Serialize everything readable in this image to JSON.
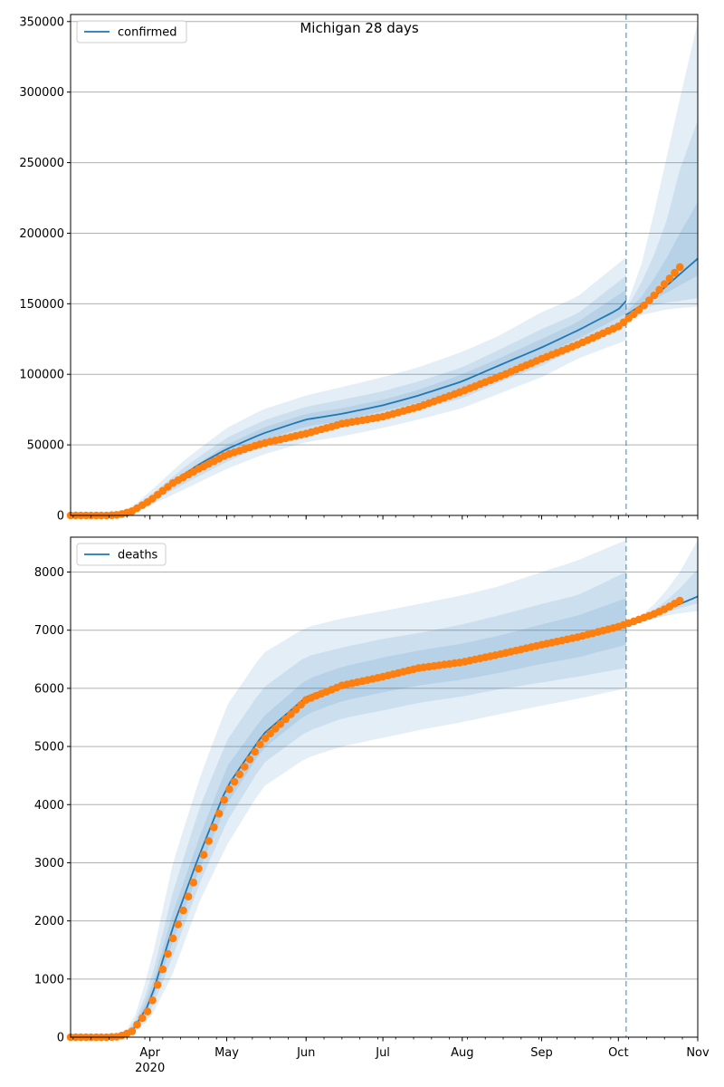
{
  "figure_title": "Michigan 28 days",
  "colors": {
    "line": "#1f77b4",
    "observed": "#ff7f0e",
    "band": "#1f77b4",
    "grid": "#b0b0b0"
  },
  "chart_data": [
    {
      "type": "line",
      "name": "confirmed",
      "legend": "confirmed",
      "legend_position": "top-left",
      "grid": "horizontal",
      "xlim": [
        "2020-03-01",
        "2020-11-01"
      ],
      "ylim": [
        0,
        355000
      ],
      "yticks": [
        0,
        50000,
        100000,
        150000,
        200000,
        250000,
        300000,
        350000
      ],
      "ytick_labels": [
        "0",
        "50000",
        "100000",
        "150000",
        "200000",
        "250000",
        "300000",
        "350000"
      ],
      "forecast_start": "2020-10-04",
      "model": {
        "x": [
          "2020-03-01",
          "2020-03-15",
          "2020-03-20",
          "2020-03-25",
          "2020-04-01",
          "2020-04-10",
          "2020-04-20",
          "2020-05-01",
          "2020-05-15",
          "2020-06-01",
          "2020-06-15",
          "2020-07-01",
          "2020-07-15",
          "2020-08-01",
          "2020-08-15",
          "2020-09-01",
          "2020-09-15",
          "2020-10-01",
          "2020-10-04"
        ],
        "y": [
          0,
          0,
          1000,
          4000,
          11000,
          24000,
          36000,
          47000,
          58000,
          68000,
          72000,
          78000,
          85000,
          95000,
          106000,
          119000,
          131000,
          146000,
          152000
        ]
      },
      "forecast": {
        "x": [
          "2020-10-04",
          "2020-10-10",
          "2020-10-15",
          "2020-10-20",
          "2020-10-25",
          "2020-11-01"
        ],
        "y": [
          142000,
          149000,
          155000,
          163000,
          171000,
          182000
        ]
      },
      "bands": [
        {
          "x": [
            "2020-03-01",
            "2020-03-15",
            "2020-03-25",
            "2020-04-01",
            "2020-04-15",
            "2020-05-01",
            "2020-05-15",
            "2020-06-01",
            "2020-06-15",
            "2020-07-01",
            "2020-07-15",
            "2020-08-01",
            "2020-08-15",
            "2020-09-01",
            "2020-09-15",
            "2020-10-04"
          ],
          "low": [
            0,
            0,
            2000,
            7000,
            19000,
            33000,
            43000,
            52000,
            56000,
            62000,
            68000,
            76000,
            86000,
            98000,
            111000,
            124000
          ],
          "high": [
            0,
            0,
            6000,
            17000,
            40000,
            62000,
            75000,
            85000,
            91000,
            98000,
            105000,
            116000,
            127000,
            144000,
            155000,
            183000
          ]
        },
        {
          "x": [
            "2020-03-01",
            "2020-03-15",
            "2020-03-25",
            "2020-04-01",
            "2020-04-15",
            "2020-05-01",
            "2020-05-15",
            "2020-06-01",
            "2020-06-15",
            "2020-07-01",
            "2020-07-15",
            "2020-08-01",
            "2020-08-15",
            "2020-09-01",
            "2020-09-15",
            "2020-10-04"
          ],
          "low": [
            0,
            0,
            3000,
            9000,
            23000,
            38000,
            49000,
            58000,
            63000,
            69000,
            75000,
            83000,
            94000,
            106000,
            119000,
            134000
          ],
          "high": [
            0,
            0,
            5000,
            14000,
            35000,
            55000,
            67000,
            77000,
            82000,
            88000,
            95000,
            105000,
            117000,
            132000,
            143000,
            170000
          ]
        },
        {
          "x": [
            "2020-03-01",
            "2020-03-15",
            "2020-03-25",
            "2020-04-01",
            "2020-04-15",
            "2020-05-01",
            "2020-05-15",
            "2020-06-01",
            "2020-06-15",
            "2020-07-01",
            "2020-07-15",
            "2020-08-01",
            "2020-08-15",
            "2020-09-01",
            "2020-09-15",
            "2020-10-04"
          ],
          "low": [
            0,
            0,
            3500,
            10500,
            26000,
            42000,
            53000,
            63000,
            67000,
            74000,
            80000,
            89000,
            100000,
            113000,
            125000,
            143000
          ],
          "high": [
            0,
            0,
            4500,
            12500,
            31000,
            50000,
            62000,
            72000,
            76000,
            82000,
            89000,
            100000,
            111000,
            125000,
            137000,
            160000
          ]
        },
        {
          "x": [
            "2020-10-04",
            "2020-10-10",
            "2020-10-15",
            "2020-10-20",
            "2020-10-25",
            "2020-11-01"
          ],
          "low": [
            138000,
            142000,
            144000,
            146000,
            147000,
            148000
          ],
          "high": [
            148000,
            178000,
            215000,
            255000,
            295000,
            350000
          ]
        },
        {
          "x": [
            "2020-10-04",
            "2020-10-10",
            "2020-10-15",
            "2020-10-20",
            "2020-10-25",
            "2020-11-01"
          ],
          "low": [
            140000,
            146000,
            149000,
            151000,
            152000,
            154000
          ],
          "high": [
            146000,
            165000,
            185000,
            210000,
            245000,
            280000
          ]
        },
        {
          "x": [
            "2020-10-04",
            "2020-10-10",
            "2020-10-15",
            "2020-10-20",
            "2020-10-25",
            "2020-11-01"
          ],
          "low": [
            141000,
            148000,
            153000,
            158000,
            163000,
            170000
          ],
          "high": [
            144000,
            155000,
            168000,
            183000,
            200000,
            222000
          ]
        }
      ],
      "observed": {
        "x": [
          "2020-03-01",
          "2020-03-10",
          "2020-03-15",
          "2020-03-20",
          "2020-03-25",
          "2020-04-01",
          "2020-04-10",
          "2020-04-20",
          "2020-05-01",
          "2020-05-15",
          "2020-06-01",
          "2020-06-15",
          "2020-07-01",
          "2020-07-15",
          "2020-08-01",
          "2020-08-15",
          "2020-09-01",
          "2020-09-15",
          "2020-10-01",
          "2020-10-10",
          "2020-10-15",
          "2020-10-20",
          "2020-10-25"
        ],
        "y": [
          0,
          0,
          0,
          500,
          3000,
          10500,
          23000,
          33000,
          43000,
          51000,
          58000,
          65000,
          70000,
          77000,
          88000,
          98000,
          111000,
          121000,
          134000,
          147000,
          156000,
          166000,
          176000
        ]
      }
    },
    {
      "type": "line",
      "name": "deaths",
      "legend": "deaths",
      "legend_position": "top-left",
      "grid": "horizontal",
      "xlim": [
        "2020-03-01",
        "2020-11-01"
      ],
      "ylim": [
        0,
        8600
      ],
      "yticks": [
        0,
        1000,
        2000,
        3000,
        4000,
        5000,
        6000,
        7000,
        8000
      ],
      "ytick_labels": [
        "0",
        "1000",
        "2000",
        "3000",
        "4000",
        "5000",
        "6000",
        "7000",
        "8000"
      ],
      "forecast_start": "2020-10-04",
      "model": {
        "x": [
          "2020-03-01",
          "2020-03-20",
          "2020-03-25",
          "2020-04-01",
          "2020-04-10",
          "2020-04-20",
          "2020-05-01",
          "2020-05-15",
          "2020-06-01",
          "2020-06-15",
          "2020-07-01",
          "2020-07-15",
          "2020-08-01",
          "2020-08-15",
          "2020-09-01",
          "2020-09-15",
          "2020-10-01",
          "2020-10-04"
        ],
        "y": [
          0,
          0,
          100,
          600,
          1900,
          3100,
          4300,
          5200,
          5850,
          6080,
          6230,
          6350,
          6450,
          6570,
          6750,
          6880,
          7050,
          7090
        ]
      },
      "forecast": {
        "x": [
          "2020-10-04",
          "2020-10-10",
          "2020-10-15",
          "2020-10-20",
          "2020-10-25",
          "2020-11-01"
        ],
        "y": [
          7090,
          7200,
          7280,
          7360,
          7450,
          7580
        ]
      },
      "bands": [
        {
          "x": [
            "2020-03-01",
            "2020-03-20",
            "2020-03-25",
            "2020-04-01",
            "2020-04-10",
            "2020-04-20",
            "2020-05-01",
            "2020-05-15",
            "2020-06-01",
            "2020-06-15",
            "2020-07-01",
            "2020-07-15",
            "2020-08-01",
            "2020-08-15",
            "2020-09-01",
            "2020-09-15",
            "2020-10-04"
          ],
          "low": [
            0,
            0,
            50,
            300,
            1100,
            2300,
            3300,
            4300,
            4800,
            5000,
            5150,
            5280,
            5420,
            5550,
            5700,
            5820,
            6000
          ],
          "high": [
            0,
            0,
            200,
            1200,
            3000,
            4400,
            5700,
            6600,
            7050,
            7200,
            7330,
            7450,
            7600,
            7750,
            8000,
            8200,
            8550
          ]
        },
        {
          "x": [
            "2020-03-01",
            "2020-03-20",
            "2020-03-25",
            "2020-04-01",
            "2020-04-10",
            "2020-04-20",
            "2020-05-01",
            "2020-05-15",
            "2020-06-01",
            "2020-06-15",
            "2020-07-01",
            "2020-07-15",
            "2020-08-01",
            "2020-08-15",
            "2020-09-01",
            "2020-09-15",
            "2020-10-04"
          ],
          "low": [
            0,
            0,
            70,
            400,
            1400,
            2600,
            3700,
            4700,
            5250,
            5480,
            5620,
            5750,
            5860,
            5980,
            6100,
            6200,
            6350
          ],
          "high": [
            0,
            0,
            150,
            900,
            2500,
            3900,
            5100,
            6000,
            6550,
            6700,
            6850,
            6950,
            7100,
            7250,
            7450,
            7600,
            8000
          ]
        },
        {
          "x": [
            "2020-03-01",
            "2020-03-20",
            "2020-03-25",
            "2020-04-01",
            "2020-04-10",
            "2020-04-20",
            "2020-05-01",
            "2020-05-15",
            "2020-06-01",
            "2020-06-15",
            "2020-07-01",
            "2020-07-15",
            "2020-08-01",
            "2020-08-15",
            "2020-09-01",
            "2020-09-15",
            "2020-10-04"
          ],
          "low": [
            0,
            0,
            90,
            500,
            1650,
            2850,
            4000,
            4950,
            5550,
            5780,
            5930,
            6050,
            6150,
            6260,
            6420,
            6530,
            6750
          ],
          "high": [
            0,
            0,
            120,
            750,
            2150,
            3400,
            4650,
            5500,
            6150,
            6370,
            6530,
            6650,
            6770,
            6900,
            7100,
            7250,
            7550
          ]
        },
        {
          "x": [
            "2020-10-04",
            "2020-10-10",
            "2020-10-15",
            "2020-10-20",
            "2020-10-25",
            "2020-11-01"
          ],
          "low": [
            7090,
            7150,
            7200,
            7250,
            7290,
            7330
          ],
          "high": [
            7090,
            7250,
            7450,
            7700,
            8000,
            8550
          ]
        },
        {
          "x": [
            "2020-10-04",
            "2020-10-10",
            "2020-10-15",
            "2020-10-20",
            "2020-10-25",
            "2020-11-01"
          ],
          "low": [
            7090,
            7170,
            7240,
            7310,
            7380,
            7460
          ],
          "high": [
            7090,
            7220,
            7350,
            7520,
            7720,
            8050
          ]
        }
      ],
      "observed": {
        "x": [
          "2020-03-01",
          "2020-03-15",
          "2020-03-20",
          "2020-03-25",
          "2020-04-01",
          "2020-04-10",
          "2020-04-20",
          "2020-05-01",
          "2020-05-15",
          "2020-06-01",
          "2020-06-15",
          "2020-07-01",
          "2020-07-15",
          "2020-08-01",
          "2020-08-15",
          "2020-09-01",
          "2020-09-15",
          "2020-10-01",
          "2020-10-10",
          "2020-10-15",
          "2020-10-20",
          "2020-10-25"
        ],
        "y": [
          0,
          0,
          10,
          100,
          500,
          1700,
          2900,
          4200,
          5100,
          5800,
          6050,
          6200,
          6350,
          6450,
          6580,
          6750,
          6880,
          7060,
          7200,
          7280,
          7380,
          7510
        ]
      }
    }
  ],
  "x_axis": {
    "major_ticks": [
      {
        "date": "2020-04-01",
        "label": "Apr",
        "sub": "2020"
      },
      {
        "date": "2020-05-01",
        "label": "May",
        "sub": ""
      },
      {
        "date": "2020-06-01",
        "label": "Jun",
        "sub": ""
      },
      {
        "date": "2020-07-01",
        "label": "Jul",
        "sub": ""
      },
      {
        "date": "2020-08-01",
        "label": "Aug",
        "sub": ""
      },
      {
        "date": "2020-09-01",
        "label": "Sep",
        "sub": ""
      },
      {
        "date": "2020-10-01",
        "label": "Oct",
        "sub": ""
      },
      {
        "date": "2020-11-01",
        "label": "Nov",
        "sub": ""
      }
    ]
  }
}
